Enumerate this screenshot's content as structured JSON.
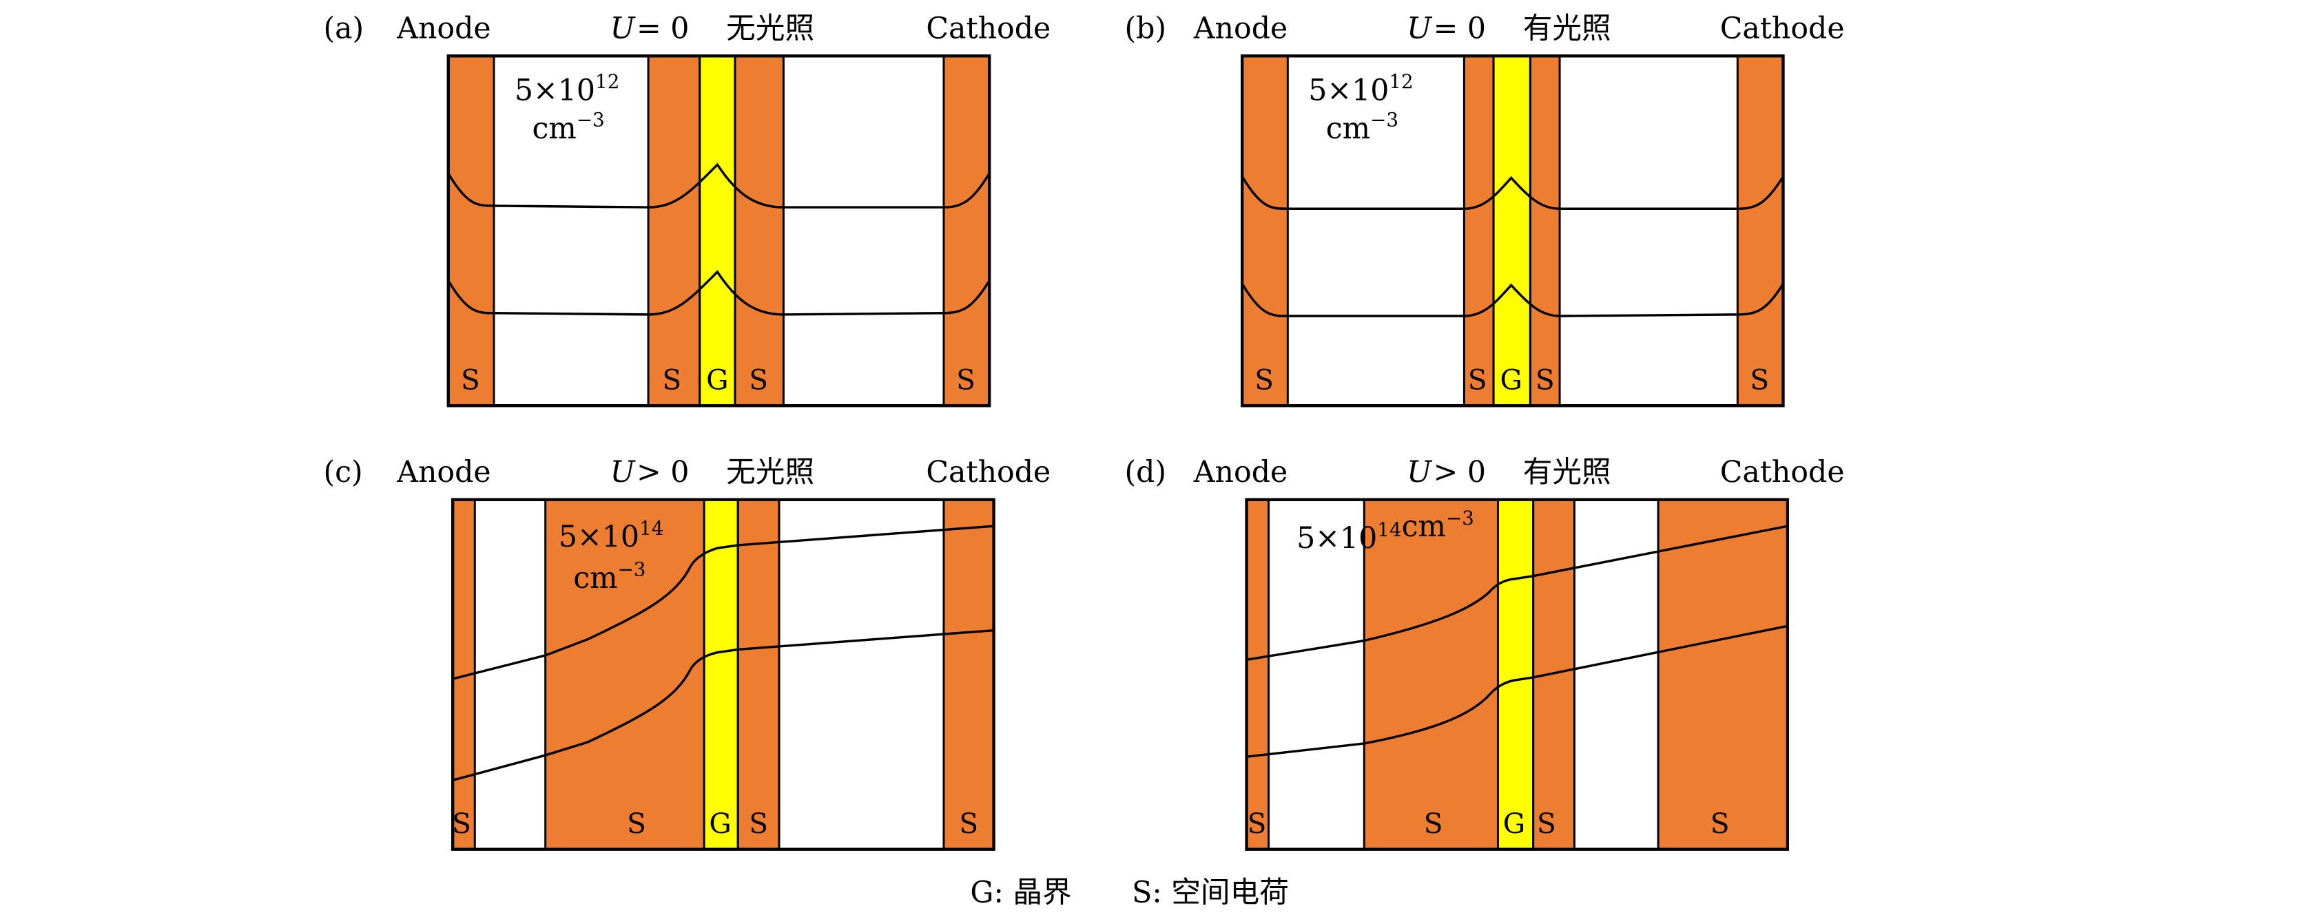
{
  "colors": {
    "space_charge": "#ED7D31",
    "grain_boundary": "#FFFF00"
  },
  "panels": {
    "a": {
      "tag": "(a)",
      "anode": "Anode",
      "u": "U",
      "cond": "= 0",
      "light": "无光照",
      "cathode": "Cathode",
      "density_base": "5×10",
      "density_exp": "12",
      "density_unit": "cm",
      "unit_exp": "−3",
      "labels": [
        "S",
        "S",
        "G",
        "S",
        "S"
      ]
    },
    "b": {
      "tag": "(b)",
      "anode": "Anode",
      "u": "U",
      "cond": "= 0",
      "light": "有光照",
      "cathode": "Cathode",
      "density_base": "5×10",
      "density_exp": "12",
      "density_unit": "cm",
      "unit_exp": "−3",
      "labels": [
        "S",
        "S",
        "G",
        "S",
        "S"
      ]
    },
    "c": {
      "tag": "(c)",
      "anode": "Anode",
      "u": "U",
      "cond": "> 0",
      "light": "无光照",
      "cathode": "Cathode",
      "density_base": "5×10",
      "density_exp": "14",
      "density_unit": "cm",
      "unit_exp": "−3",
      "labels": [
        "S",
        "S",
        "G",
        "S",
        "S"
      ]
    },
    "d": {
      "tag": "(d)",
      "anode": "Anode",
      "u": "U",
      "cond": "> 0",
      "light": "有光照",
      "cathode": "Cathode",
      "density_base": "5×10",
      "density_exp": "14",
      "density_unit": "cm",
      "unit_exp": "−3",
      "labels": [
        "S",
        "S",
        "G",
        "S",
        "S"
      ]
    }
  },
  "legend": {
    "g": "G: 晶界",
    "s": "S: 空间电荷"
  }
}
